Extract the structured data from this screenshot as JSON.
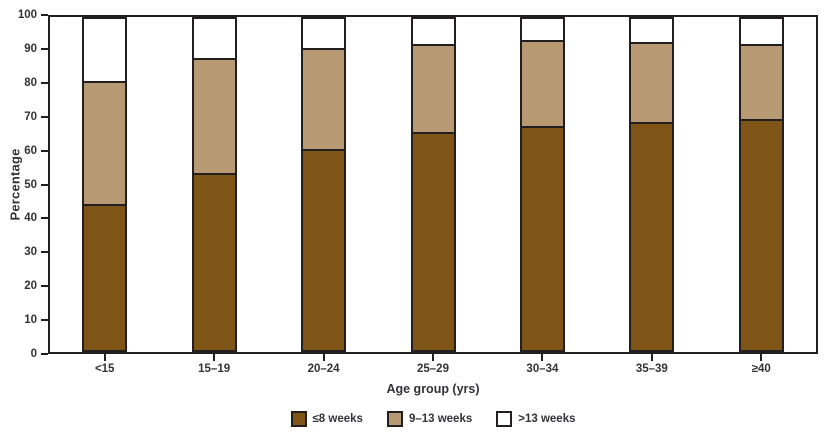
{
  "chart_data": {
    "type": "bar",
    "stacked": true,
    "title": "",
    "xlabel": "Age group (yrs)",
    "ylabel": "Percentage",
    "ylim": [
      0,
      100
    ],
    "ytick_step": 10,
    "grid": false,
    "legend_position": "bottom",
    "categories": [
      "<15",
      "15–19",
      "20–24",
      "25–29",
      "30–34",
      "35–39",
      "≥40"
    ],
    "series": [
      {
        "name": "≤8 weeks",
        "color": "#7F5517",
        "values": [
          44,
          53.5,
          61,
          66,
          68,
          69,
          70
        ]
      },
      {
        "name": "9–13 weeks",
        "color": "#B79A74",
        "values": [
          37,
          34.5,
          30,
          26.5,
          25.5,
          24,
          22.5
        ]
      },
      {
        "name": ">13 weeks",
        "color": "#FFFFFF",
        "values": [
          19,
          12,
          9,
          7.5,
          6.5,
          7,
          7.5
        ]
      }
    ]
  },
  "colors": {
    "frame": "#231F20",
    "text": "#333338",
    "background": "#FFFFFF"
  }
}
